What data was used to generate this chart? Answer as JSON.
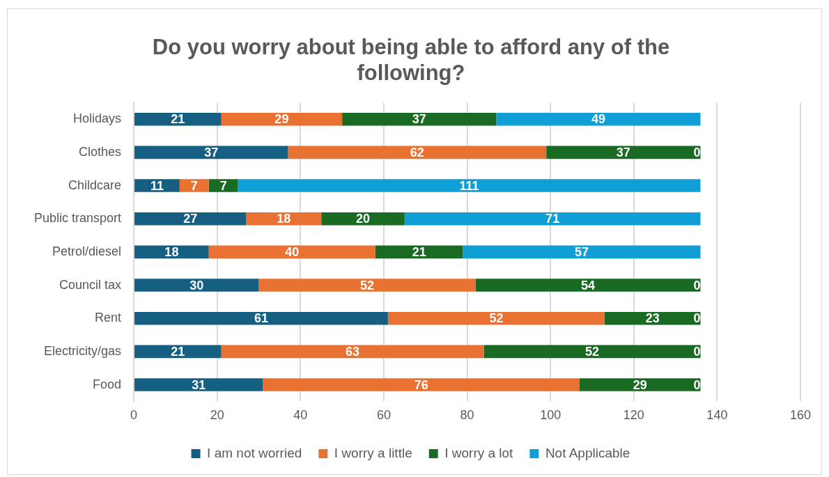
{
  "chart_data": {
    "type": "bar",
    "orientation": "horizontal",
    "stacked": true,
    "title": "Do you worry about being able to afford any of the following?",
    "categories": [
      "Holidays",
      "Clothes",
      "Childcare",
      "Public transport",
      "Petrol/diesel",
      "Council tax",
      "Rent",
      "Electricity/gas",
      "Food"
    ],
    "series": [
      {
        "name": "I am not worried",
        "color": "#156082",
        "values": [
          21,
          37,
          11,
          27,
          18,
          30,
          61,
          21,
          31
        ]
      },
      {
        "name": "I worry a little",
        "color": "#e97132",
        "values": [
          29,
          62,
          7,
          18,
          40,
          52,
          52,
          63,
          76
        ]
      },
      {
        "name": "I worry a lot",
        "color": "#196b24",
        "values": [
          37,
          37,
          7,
          20,
          21,
          54,
          23,
          52,
          29
        ]
      },
      {
        "name": "Not Applicable",
        "color": "#0f9ed5",
        "values": [
          49,
          0,
          111,
          71,
          57,
          0,
          0,
          0,
          0
        ]
      }
    ],
    "xlim": [
      0,
      160
    ],
    "xticks": [
      0,
      20,
      40,
      60,
      80,
      100,
      120,
      140,
      160
    ],
    "grid": "x",
    "legend": "bottom",
    "data_labels": true
  }
}
